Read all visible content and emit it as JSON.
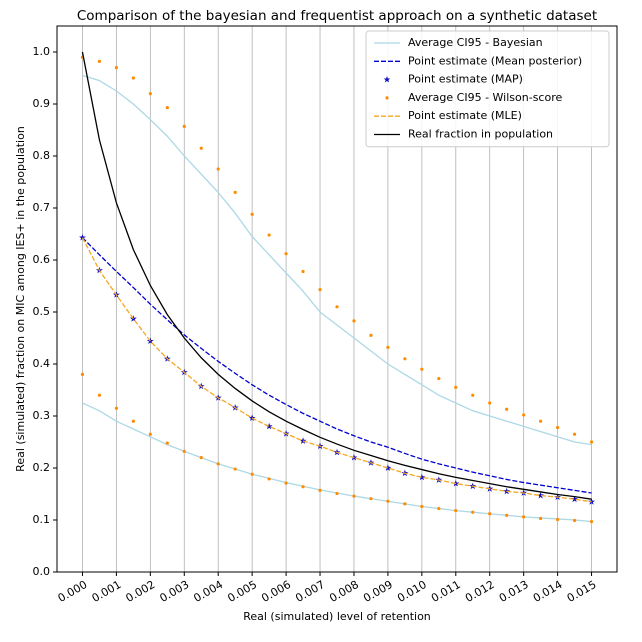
{
  "chart_data": {
    "type": "line",
    "title": "Comparison of the bayesian and frequentist approach on a synthetic dataset",
    "x_label": "Real (simulated) level of retention",
    "y_label": "Real (simulated) fraction on MIC among IES+ in the population",
    "x": [
      0,
      0.0005,
      0.001,
      0.0015,
      0.002,
      0.0025,
      0.003,
      0.0035,
      0.004,
      0.0045,
      0.005,
      0.0055,
      0.006,
      0.0065,
      0.007,
      0.0075,
      0.008,
      0.0085,
      0.009,
      0.0095,
      0.01,
      0.0105,
      0.011,
      0.0115,
      0.012,
      0.0125,
      0.013,
      0.0135,
      0.014,
      0.0145,
      0.015
    ],
    "xlim": [
      -0.00075,
      0.01575
    ],
    "xticks": [
      {
        "value": 0,
        "label": "0.000"
      },
      {
        "value": 0.001,
        "label": "0.001"
      },
      {
        "value": 0.002,
        "label": "0.002"
      },
      {
        "value": 0.003,
        "label": "0.003"
      },
      {
        "value": 0.004,
        "label": "0.004"
      },
      {
        "value": 0.005,
        "label": "0.005"
      },
      {
        "value": 0.006,
        "label": "0.006"
      },
      {
        "value": 0.007,
        "label": "0.007"
      },
      {
        "value": 0.008,
        "label": "0.008"
      },
      {
        "value": 0.009,
        "label": "0.009"
      },
      {
        "value": 0.01,
        "label": "0.010"
      },
      {
        "value": 0.011,
        "label": "0.011"
      },
      {
        "value": 0.012,
        "label": "0.012"
      },
      {
        "value": 0.013,
        "label": "0.013"
      },
      {
        "value": 0.014,
        "label": "0.014"
      },
      {
        "value": 0.015,
        "label": "0.015"
      }
    ],
    "ylim": [
      0,
      1.05
    ],
    "yticks": [
      {
        "value": 0,
        "label": "0.0"
      },
      0.1,
      0.2,
      0.3,
      0.4,
      0.5,
      0.6,
      0.7,
      0.8,
      0.9,
      {
        "value": 1,
        "label": "1.0"
      }
    ],
    "grid": "x",
    "legend": "upper right",
    "series": [
      {
        "name": "Average CI95 - Bayesian",
        "color": "#add8e6",
        "style": "line",
        "lower": [
          0.325,
          0.31,
          0.29,
          0.275,
          0.26,
          0.245,
          0.232,
          0.22,
          0.208,
          0.198,
          0.188,
          0.18,
          0.172,
          0.165,
          0.158,
          0.152,
          0.146,
          0.141,
          0.136,
          0.131,
          0.126,
          0.122,
          0.118,
          0.115,
          0.112,
          0.109,
          0.106,
          0.104,
          0.102,
          0.1,
          0.097
        ],
        "upper": [
          0.955,
          0.945,
          0.925,
          0.9,
          0.87,
          0.838,
          0.8,
          0.765,
          0.73,
          0.69,
          0.645,
          0.61,
          0.575,
          0.54,
          0.5,
          0.475,
          0.45,
          0.425,
          0.4,
          0.38,
          0.36,
          0.34,
          0.325,
          0.31,
          0.3,
          0.29,
          0.28,
          0.27,
          0.26,
          0.25,
          0.245
        ]
      },
      {
        "name": "Point estimate (Mean posterior)",
        "color": "#0000cc",
        "style": "dashed",
        "values": [
          0.643,
          0.61,
          0.578,
          0.547,
          0.515,
          0.485,
          0.456,
          0.43,
          0.405,
          0.382,
          0.36,
          0.34,
          0.322,
          0.305,
          0.29,
          0.275,
          0.262,
          0.25,
          0.24,
          0.228,
          0.217,
          0.208,
          0.2,
          0.192,
          0.185,
          0.178,
          0.172,
          0.167,
          0.162,
          0.157,
          0.152
        ]
      },
      {
        "name": "Point estimate (MAP)",
        "color": "#1010c0",
        "style": "star",
        "values": [
          0.643,
          0.58,
          0.533,
          0.487,
          0.444,
          0.41,
          0.384,
          0.357,
          0.335,
          0.316,
          0.296,
          0.28,
          0.266,
          0.252,
          0.242,
          0.23,
          0.22,
          0.21,
          0.2,
          0.19,
          0.182,
          0.177,
          0.17,
          0.165,
          0.16,
          0.155,
          0.152,
          0.147,
          0.144,
          0.14,
          0.135
        ]
      },
      {
        "name": "Average CI95 - Wilson-score",
        "color": "#ff8c00",
        "style": "dot",
        "lower": [
          0.38,
          0.34,
          0.315,
          0.29,
          0.265,
          0.248,
          0.232,
          0.22,
          0.208,
          0.198,
          0.188,
          0.179,
          0.171,
          0.164,
          0.157,
          0.151,
          0.146,
          0.141,
          0.136,
          0.131,
          0.126,
          0.122,
          0.118,
          0.115,
          0.112,
          0.109,
          0.106,
          0.103,
          0.101,
          0.099,
          0.097
        ],
        "upper": [
          0.99,
          0.982,
          0.97,
          0.95,
          0.92,
          0.893,
          0.857,
          0.815,
          0.775,
          0.73,
          0.688,
          0.648,
          0.612,
          0.578,
          0.543,
          0.51,
          0.483,
          0.455,
          0.432,
          0.41,
          0.39,
          0.372,
          0.355,
          0.34,
          0.325,
          0.313,
          0.302,
          0.29,
          0.278,
          0.265,
          0.25
        ]
      },
      {
        "name": "Point estimate (MLE)",
        "color": "#f5a623",
        "style": "dashed",
        "values": [
          0.643,
          0.58,
          0.533,
          0.487,
          0.444,
          0.41,
          0.384,
          0.357,
          0.335,
          0.316,
          0.296,
          0.28,
          0.266,
          0.252,
          0.242,
          0.23,
          0.22,
          0.21,
          0.2,
          0.19,
          0.182,
          0.177,
          0.17,
          0.165,
          0.16,
          0.155,
          0.152,
          0.147,
          0.144,
          0.14,
          0.135
        ]
      },
      {
        "name": "Real fraction in population",
        "color": "#000000",
        "style": "line",
        "values": [
          1.0,
          0.831,
          0.71,
          0.62,
          0.551,
          0.495,
          0.45,
          0.412,
          0.38,
          0.353,
          0.329,
          0.308,
          0.29,
          0.274,
          0.259,
          0.246,
          0.234,
          0.224,
          0.214,
          0.205,
          0.197,
          0.189,
          0.182,
          0.176,
          0.17,
          0.164,
          0.159,
          0.154,
          0.149,
          0.145,
          0.14
        ]
      }
    ]
  }
}
